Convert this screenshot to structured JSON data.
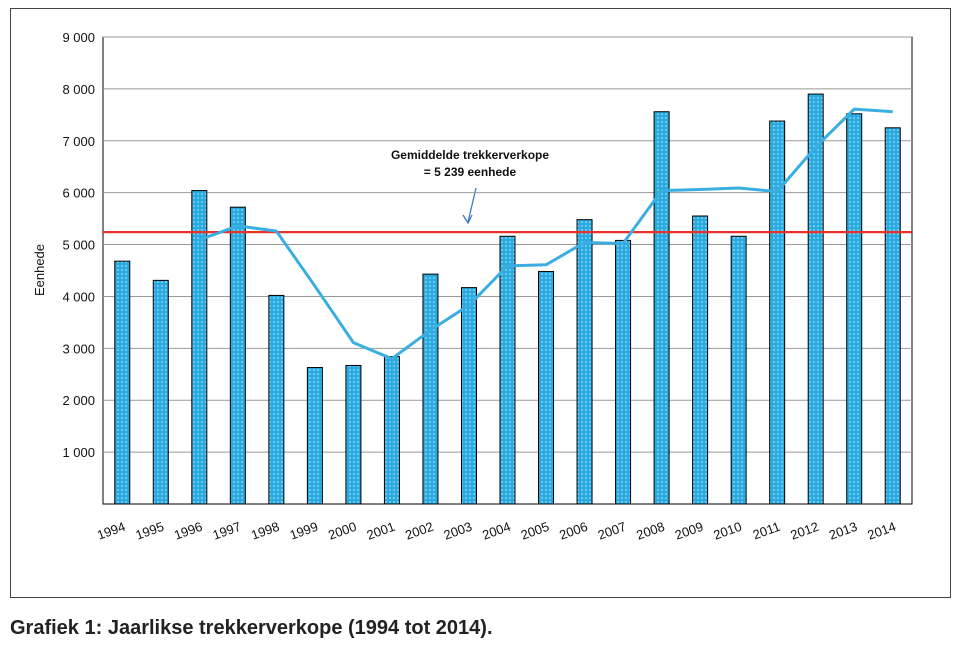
{
  "chart_data": {
    "type": "bar",
    "caption": "Grafiek 1: Jaarlikse trekkerverkope (1994 tot 2014).",
    "ylabel": "Eenhede",
    "categories": [
      "1994",
      "1995",
      "1996",
      "1997",
      "1998",
      "1999",
      "2000",
      "2001",
      "2002",
      "2003",
      "2004",
      "2005",
      "2006",
      "2007",
      "2008",
      "2009",
      "2010",
      "2011",
      "2012",
      "2013",
      "2014"
    ],
    "values": [
      4680,
      4310,
      6040,
      5720,
      4020,
      2630,
      2670,
      2840,
      4430,
      4170,
      5160,
      4480,
      5480,
      5080,
      7560,
      5550,
      5160,
      7380,
      7900,
      7520,
      7250
    ],
    "color": "#29abe2",
    "trend": {
      "color": "#3aaee0",
      "values": [
        null,
        null,
        5090,
        5360,
        5260,
        4200,
        3110,
        2800,
        3350,
        3830,
        4590,
        4610,
        5040,
        5020,
        6040,
        6060,
        6090,
        6020,
        6880,
        7610,
        7560
      ]
    },
    "reference_line": {
      "value": 5239,
      "color": "#e5322b"
    },
    "annotation": [
      "Gemiddelde trekkerverkope",
      "= 5 239 eenhede"
    ],
    "ylim": [
      0,
      9000
    ],
    "yticks": [
      {
        "value": 1000,
        "label": "1 000"
      },
      {
        "value": 2000,
        "label": "2 000"
      },
      {
        "value": 3000,
        "label": "3 000"
      },
      {
        "value": 4000,
        "label": "4 000"
      },
      {
        "value": 5000,
        "label": "5 000"
      },
      {
        "value": 6000,
        "label": "6 000"
      },
      {
        "value": 7000,
        "label": "7 000"
      },
      {
        "value": 8000,
        "label": "8 000"
      },
      {
        "value": 9000,
        "label": "9 000"
      }
    ],
    "grid": true
  }
}
